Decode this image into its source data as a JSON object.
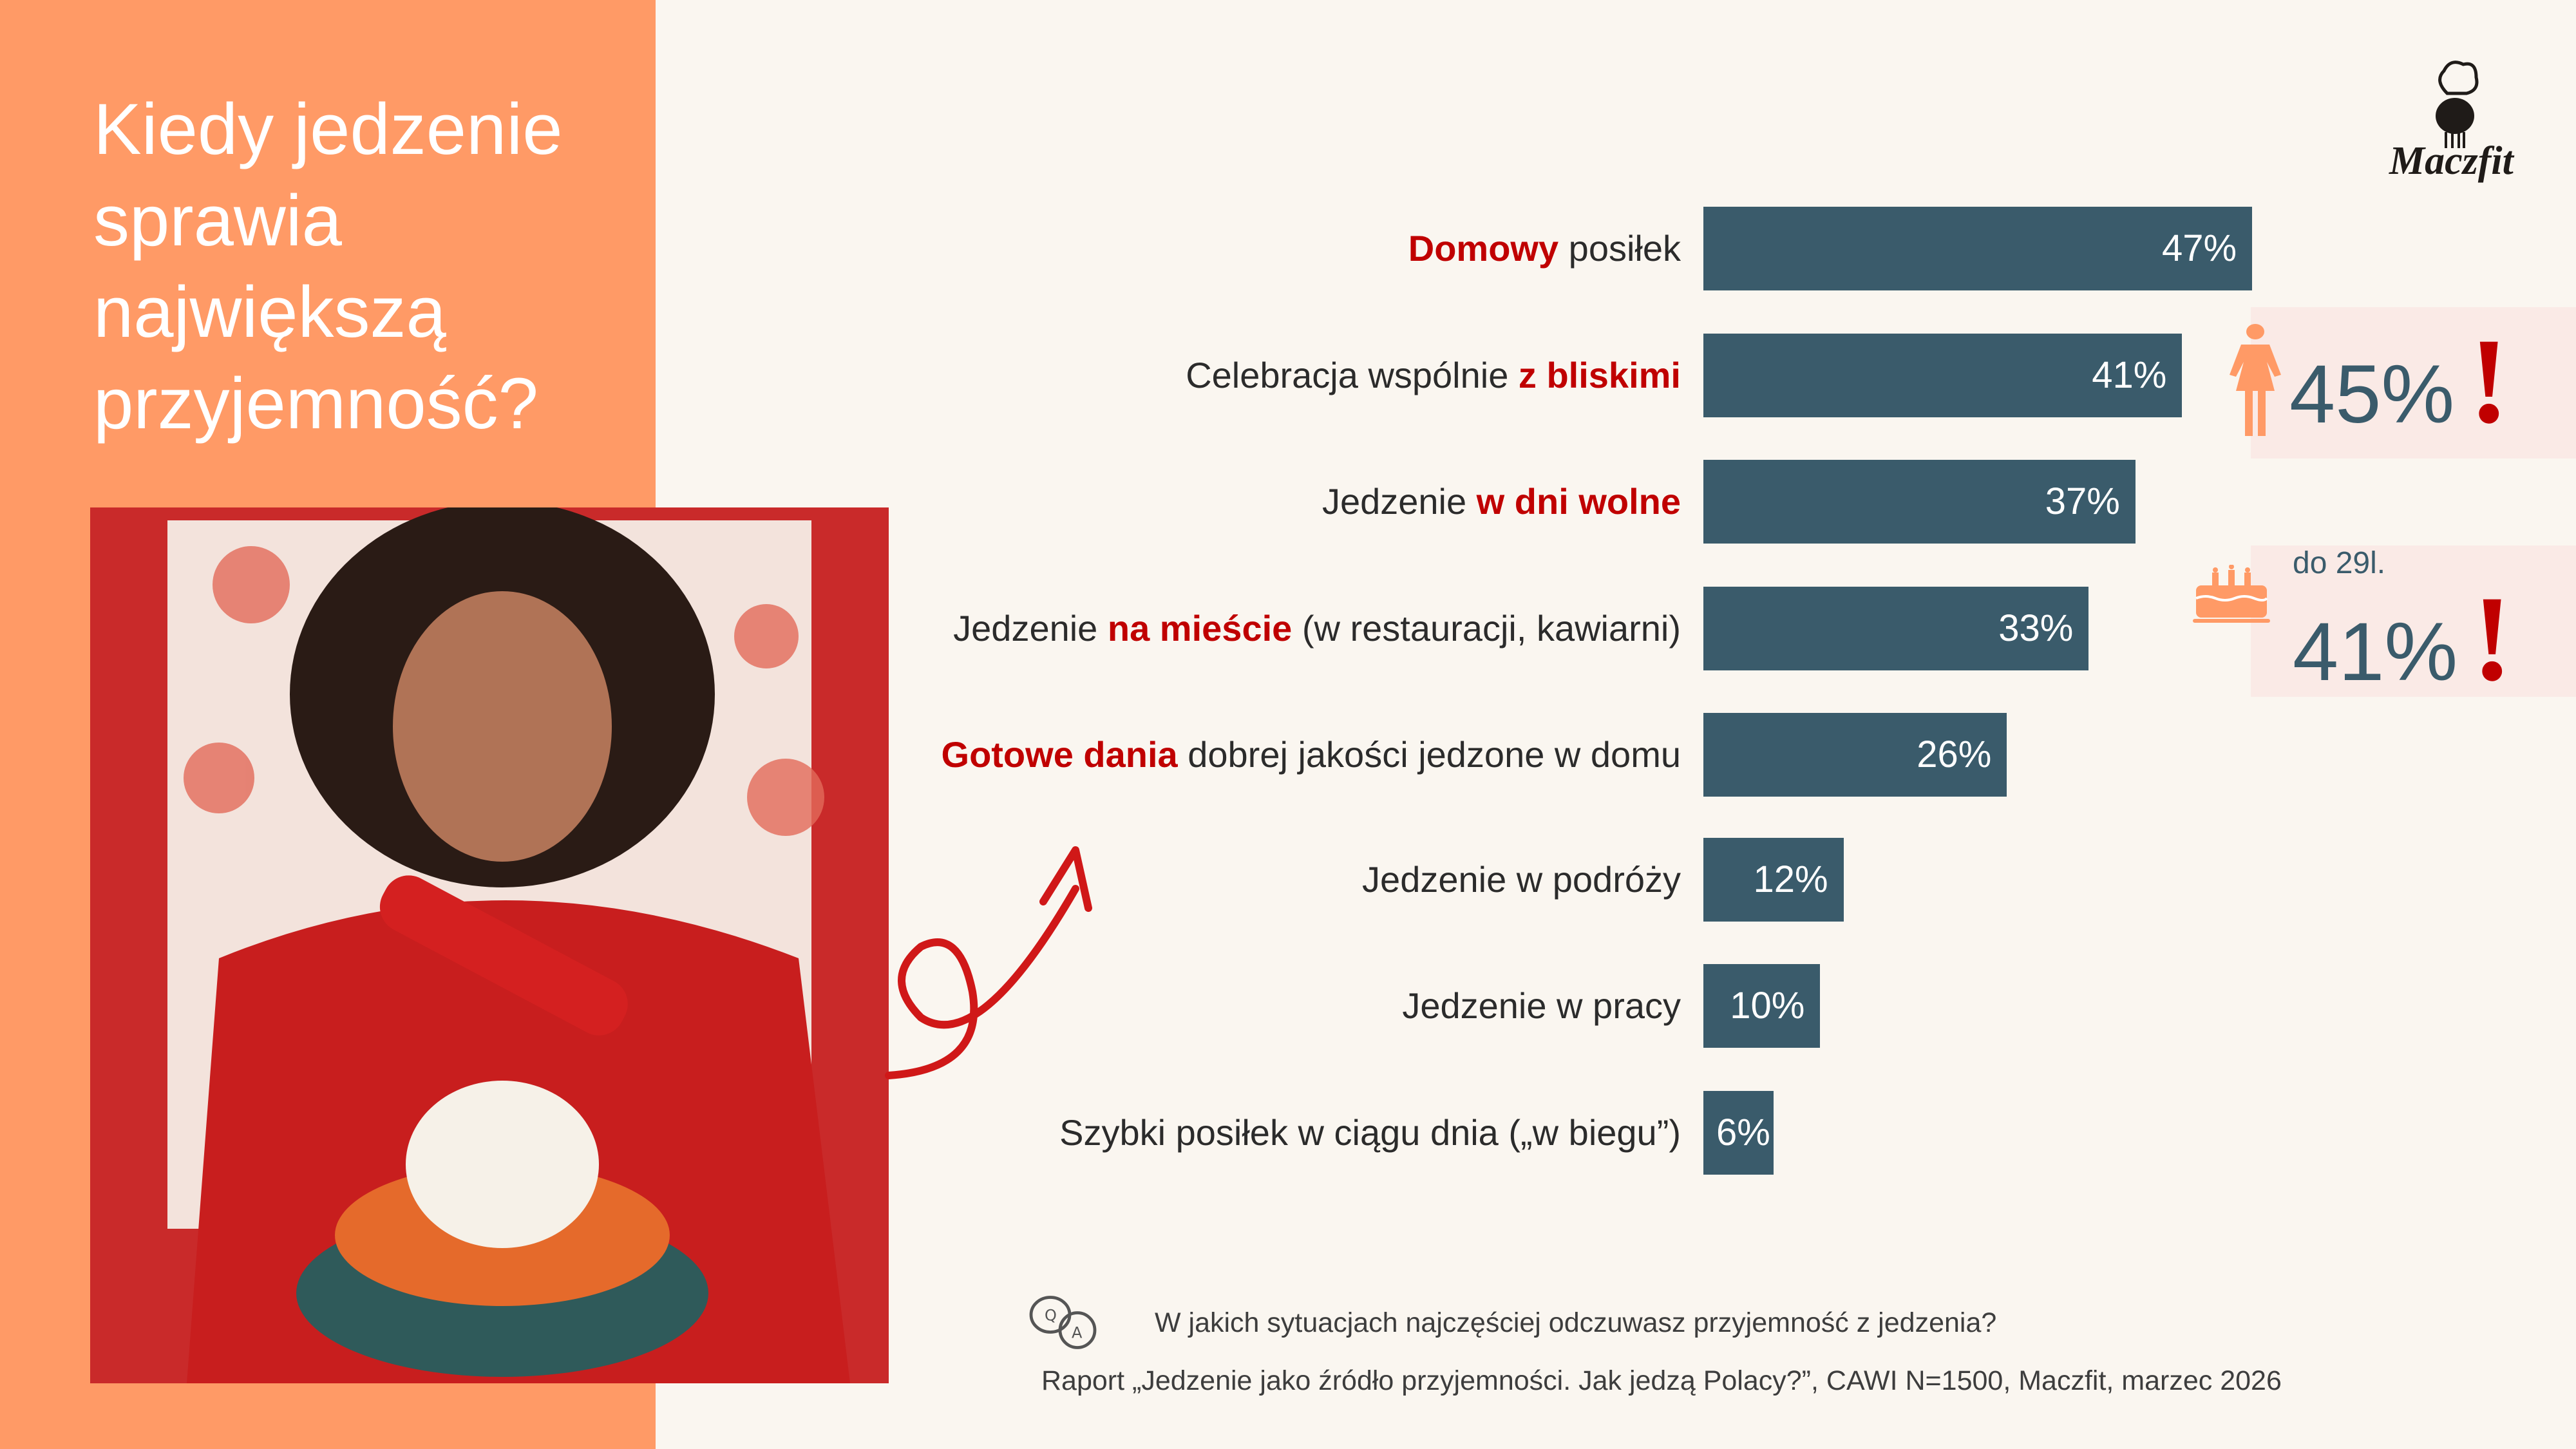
{
  "title": {
    "line1": "Kiedy jedzenie",
    "line2": "sprawia",
    "line3": "największą",
    "line4": "przyjemność?"
  },
  "brand": {
    "logo_text": "Maczfit"
  },
  "colors": {
    "bar": "#3A5B6B",
    "highlight": "#C00000",
    "panel": "#FF9A66",
    "callout_bg": "#FAEAE6",
    "icon": "#FF9A66"
  },
  "chart_data": {
    "type": "bar",
    "orientation": "horizontal",
    "categories": [
      {
        "pre": "",
        "hl": "Domowy",
        "post": " posiłek"
      },
      {
        "pre": "Celebracja wspólnie ",
        "hl": "z bliskimi",
        "post": ""
      },
      {
        "pre": "Jedzenie ",
        "hl": "w dni wolne",
        "post": ""
      },
      {
        "pre": "Jedzenie ",
        "hl": "na mieście",
        "post": " (w restauracji, kawiarni)"
      },
      {
        "pre": "",
        "hl": "Gotowe dania",
        "post": " dobrej jakości jedzone w domu"
      },
      {
        "pre": "Jedzenie w podróży",
        "hl": "",
        "post": ""
      },
      {
        "pre": "Jedzenie w pracy",
        "hl": "",
        "post": ""
      },
      {
        "pre": "Szybki posiłek w ciągu dnia („w biegu”)",
        "hl": "",
        "post": ""
      }
    ],
    "values": [
      47,
      41,
      37,
      33,
      26,
      12,
      10,
      6
    ],
    "value_labels": [
      "47%",
      "41%",
      "37%",
      "33%",
      "26%",
      "12%",
      "10%",
      "6%"
    ]
  },
  "callouts": [
    {
      "icon": "woman-icon",
      "value": "45%",
      "mark": "!"
    },
    {
      "icon": "birthday-cake-icon",
      "sublabel": "do 29l.",
      "value": "41%",
      "mark": "!"
    }
  ],
  "footer": {
    "question": "W jakich sytuacjach najczęściej odczuwasz przyjemność z jedzenia?",
    "source": "Raport „Jedzenie jako źródło przyjemności. Jak jedzą Polacy?”, CAWI N=1500, Maczfit, marzec 2026",
    "qa_icon": "qa-speech-bubbles-icon"
  }
}
